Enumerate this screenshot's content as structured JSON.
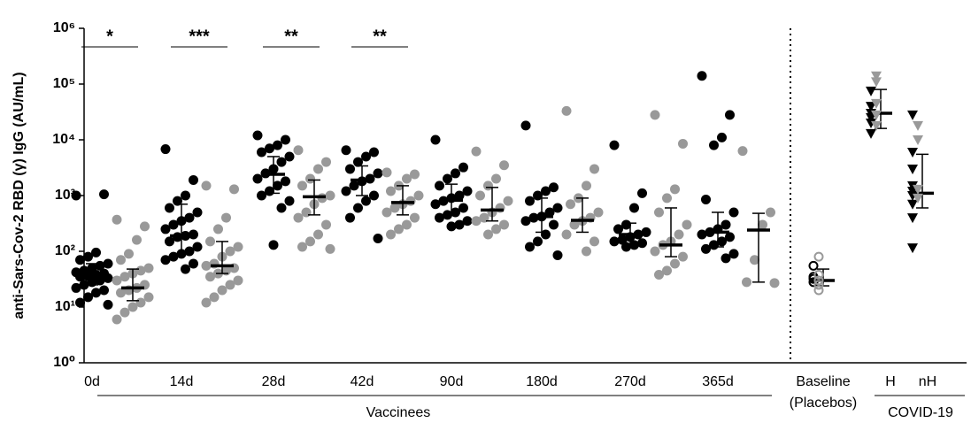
{
  "chart_data": {
    "type": "dotplot",
    "ylabel": "anti-Sars-Cov-2 RBD (γ) IgG (AU/mL)",
    "log": true,
    "ylim": [
      1,
      1000000
    ],
    "yticks": [
      {
        "value": 1,
        "label": "10⁰"
      },
      {
        "value": 10,
        "label": "10¹"
      },
      {
        "value": 100,
        "label": "10²"
      },
      {
        "value": 1000,
        "label": "10³"
      },
      {
        "value": 10000,
        "label": "10⁴"
      },
      {
        "value": 100000,
        "label": "10⁵"
      },
      {
        "value": 1000000,
        "label": "10⁶"
      }
    ],
    "groups": [
      {
        "label": "0d",
        "significance": "*",
        "sets": [
          {
            "color": "#000000",
            "marker": "circle",
            "values": [
              1000,
              1050,
              95,
              80,
              70,
              60,
              55,
              50,
              45,
              42,
              40,
              38,
              36,
              35,
              33,
              30,
              28,
              25,
              22,
              20,
              18,
              15,
              12,
              11
            ],
            "median": 38,
            "range": [
              25,
              60
            ]
          },
          {
            "color": "#999999",
            "marker": "circle",
            "values": [
              370,
              280,
              160,
              90,
              70,
              50,
              45,
              40,
              35,
              30,
              25,
              22,
              20,
              18,
              15,
              12,
              10,
              8,
              6
            ],
            "median": 22,
            "range": [
              13,
              48
            ]
          }
        ]
      },
      {
        "label": "14d",
        "significance": "***",
        "sets": [
          {
            "color": "#000000",
            "marker": "circle",
            "values": [
              6800,
              1900,
              1000,
              800,
              600,
              500,
              400,
              350,
              300,
              250,
              200,
              190,
              180,
              150,
              120,
              100,
              90,
              80,
              70,
              60,
              48
            ],
            "median": 190,
            "range": [
              90,
              700
            ]
          },
          {
            "color": "#999999",
            "marker": "circle",
            "values": [
              1500,
              1300,
              400,
              250,
              150,
              120,
              100,
              80,
              60,
              55,
              50,
              45,
              40,
              35,
              30,
              25,
              20,
              15,
              12
            ],
            "median": 55,
            "range": [
              40,
              150
            ]
          }
        ]
      },
      {
        "label": "28d",
        "significance": "**",
        "sets": [
          {
            "color": "#000000",
            "marker": "circle",
            "values": [
              12000,
              10000,
              8000,
              7000,
              6000,
              5000,
              4000,
              3000,
              2500,
              2000,
              1800,
              1500,
              1200,
              1000,
              800,
              600,
              130
            ],
            "median": 2400,
            "range": [
              1100,
              5000
            ]
          },
          {
            "color": "#999999",
            "marker": "circle",
            "values": [
              6500,
              4000,
              3000,
              2000,
              1500,
              1000,
              900,
              700,
              500,
              400,
              300,
              200,
              150,
              120,
              110
            ],
            "median": 950,
            "range": [
              450,
              1900
            ]
          }
        ]
      },
      {
        "label": "42d",
        "significance": "**",
        "sets": [
          {
            "color": "#000000",
            "marker": "circle",
            "values": [
              6500,
              6000,
              5000,
              4000,
              3000,
              2500,
              2000,
              1800,
              1500,
              1200,
              1000,
              800,
              600,
              400,
              170
            ],
            "median": 1900,
            "range": [
              1000,
              3400
            ]
          },
          {
            "color": "#999999",
            "marker": "circle",
            "values": [
              2600,
              2400,
              2000,
              1500,
              1200,
              1000,
              800,
              700,
              600,
              500,
              400,
              300,
              250,
              200
            ],
            "median": 750,
            "range": [
              450,
              1500
            ]
          }
        ]
      },
      {
        "label": "90d",
        "sets": [
          {
            "color": "#000000",
            "marker": "circle",
            "values": [
              10000,
              3200,
              2500,
              2000,
              1500,
              1200,
              1000,
              900,
              800,
              700,
              600,
              500,
              450,
              400,
              350,
              300,
              280
            ],
            "median": 820,
            "range": [
              450,
              1600
            ]
          },
          {
            "color": "#999999",
            "marker": "circle",
            "values": [
              6200,
              3500,
              2000,
              1500,
              1000,
              800,
              600,
              500,
              400,
              350,
              300,
              250,
              200
            ],
            "median": 550,
            "range": [
              350,
              1400
            ]
          }
        ]
      },
      {
        "label": "180d",
        "sets": [
          {
            "color": "#000000",
            "marker": "circle",
            "values": [
              18000,
              1400,
              1200,
              1000,
              800,
              600,
              500,
              420,
              400,
              350,
              300,
              200,
              150,
              120,
              85
            ],
            "median": 420,
            "range": [
              220,
              900
            ]
          },
          {
            "color": "#999999",
            "marker": "circle",
            "values": [
              33000,
              3000,
              1500,
              900,
              700,
              500,
              400,
              350,
              300,
              200,
              150,
              100
            ],
            "median": 360,
            "range": [
              220,
              900
            ]
          }
        ]
      },
      {
        "label": "270d",
        "sets": [
          {
            "color": "#000000",
            "marker": "circle",
            "values": [
              8000,
              1100,
              600,
              300,
              250,
              220,
              200,
              180,
              160,
              150,
              140,
              130,
              120
            ],
            "median": 200,
            "range": [
              130,
              320
            ]
          },
          {
            "color": "#999999",
            "marker": "circle",
            "values": [
              28000,
              8500,
              1300,
              900,
              500,
              300,
              200,
              150,
              130,
              100,
              80,
              60,
              45,
              38
            ],
            "median": 130,
            "range": [
              80,
              600
            ]
          }
        ]
      },
      {
        "label": "365d",
        "sets": [
          {
            "color": "#000000",
            "marker": "circle",
            "values": [
              140000,
              28000,
              11000,
              8000,
              850,
              500,
              300,
              250,
              220,
              200,
              180,
              150,
              130,
              110,
              90,
              75
            ],
            "median": 220,
            "range": [
              120,
              500
            ]
          },
          {
            "color": "#999999",
            "marker": "circle",
            "values": [
              6300,
              500,
              300,
              70,
              28,
              27
            ],
            "median": 240,
            "range": [
              28,
              480
            ]
          }
        ]
      },
      {
        "label": "Baseline",
        "sublabel": "(Placebos)",
        "sets": [
          {
            "color": "#000000",
            "marker": "open-circle",
            "values": [
              55,
              32,
              28,
              35
            ],
            "median": 30,
            "range": [
              24,
              48
            ]
          },
          {
            "color": "#999999",
            "marker": "open-circle",
            "values": [
              80,
              38,
              25,
              20,
              30
            ]
          }
        ]
      },
      {
        "label": "H",
        "sets": [
          {
            "color": "#000000",
            "marker": "triangle",
            "values": [
              75000,
              40000,
              30000,
              25000,
              20000,
              13000
            ],
            "median": 30000,
            "range": [
              16000,
              80000
            ]
          },
          {
            "color": "#999999",
            "marker": "triangle",
            "values": [
              140000,
              110000,
              45000,
              28000,
              18000
            ]
          }
        ]
      },
      {
        "label": "nH",
        "sets": [
          {
            "color": "#000000",
            "marker": "triangle",
            "values": [
              28000,
              6000,
              3000,
              1500,
              1200,
              1000,
              700,
              400,
              115
            ],
            "median": 1100,
            "range": [
              600,
              5500
            ]
          },
          {
            "color": "#999999",
            "marker": "triangle",
            "values": [
              18000,
              10000,
              1300,
              900
            ]
          }
        ]
      }
    ],
    "annotations": [
      "Vaccinees",
      "COVID-19"
    ]
  }
}
